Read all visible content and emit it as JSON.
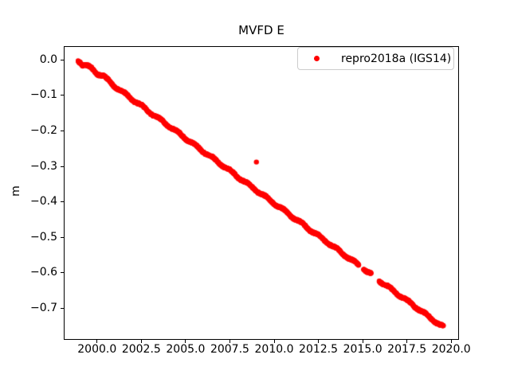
{
  "chart_data": {
    "type": "scatter",
    "title": "MVFD E",
    "xlabel": "",
    "ylabel": "m",
    "xlim": [
      1998.12,
      2020.44
    ],
    "ylim": [
      -0.79,
      0.04
    ],
    "grid": false,
    "xticks": {
      "values": [
        2000.0,
        2002.5,
        2005.0,
        2007.5,
        2010.0,
        2012.5,
        2015.0,
        2017.5,
        2020.0
      ],
      "labels": [
        "2000.0",
        "2002.5",
        "2005.0",
        "2007.5",
        "2010.0",
        "2012.5",
        "2015.0",
        "2017.5",
        "2020.0"
      ]
    },
    "yticks": {
      "values": [
        0.0,
        -0.1,
        -0.2,
        -0.3,
        -0.4,
        -0.5,
        -0.6,
        -0.7
      ],
      "labels": [
        "0.0",
        "−0.1",
        "−0.2",
        "−0.3",
        "−0.4",
        "−0.5",
        "−0.6",
        "−0.7"
      ]
    },
    "legend": {
      "position": "upper right",
      "entries": [
        {
          "label": "repro2018a (IGS14)",
          "color": "#ff0000",
          "marker": "dot"
        }
      ]
    },
    "series": [
      {
        "name": "repro2018a (IGS14)",
        "color": "#ff0000",
        "marker": "dot",
        "marker_diameter_px": 6,
        "trend": {
          "x_start": 1998.93,
          "x_end": 2019.58,
          "slope_m_per_yr": -0.0366
        },
        "gaps": [
          [
            2014.8,
            2015.05
          ],
          [
            2015.5,
            2015.93
          ]
        ],
        "segments": [
          [
            [
              1998.93,
              -0.001
            ],
            [
              1999.05,
              -0.004
            ],
            [
              1999.15,
              -0.012
            ],
            [
              1999.4,
              -0.015
            ],
            [
              1999.7,
              -0.023
            ],
            [
              2000.0,
              -0.037
            ],
            [
              2000.35,
              -0.044
            ],
            [
              2000.7,
              -0.06
            ],
            [
              2001.0,
              -0.073
            ],
            [
              2002.0,
              -0.11
            ],
            [
              2003.0,
              -0.147
            ],
            [
              2004.0,
              -0.183
            ],
            [
              2005.0,
              -0.22
            ],
            [
              2006.0,
              -0.257
            ],
            [
              2007.0,
              -0.293
            ],
            [
              2008.0,
              -0.33
            ],
            [
              2009.0,
              -0.367
            ],
            [
              2010.0,
              -0.403
            ],
            [
              2011.0,
              -0.44
            ],
            [
              2012.0,
              -0.477
            ],
            [
              2013.0,
              -0.513
            ],
            [
              2014.0,
              -0.55
            ],
            [
              2014.8,
              -0.579
            ]
          ],
          [
            [
              2015.05,
              -0.588
            ],
            [
              2015.5,
              -0.605
            ]
          ],
          [
            [
              2015.93,
              -0.621
            ],
            [
              2016.5,
              -0.642
            ],
            [
              2017.0,
              -0.66
            ],
            [
              2017.5,
              -0.678
            ],
            [
              2018.0,
              -0.696
            ],
            [
              2018.5,
              -0.715
            ],
            [
              2019.0,
              -0.733
            ],
            [
              2019.3,
              -0.744
            ],
            [
              2019.58,
              -0.754
            ]
          ]
        ],
        "outliers": [
          [
            2009.0,
            -0.287
          ]
        ]
      }
    ]
  }
}
